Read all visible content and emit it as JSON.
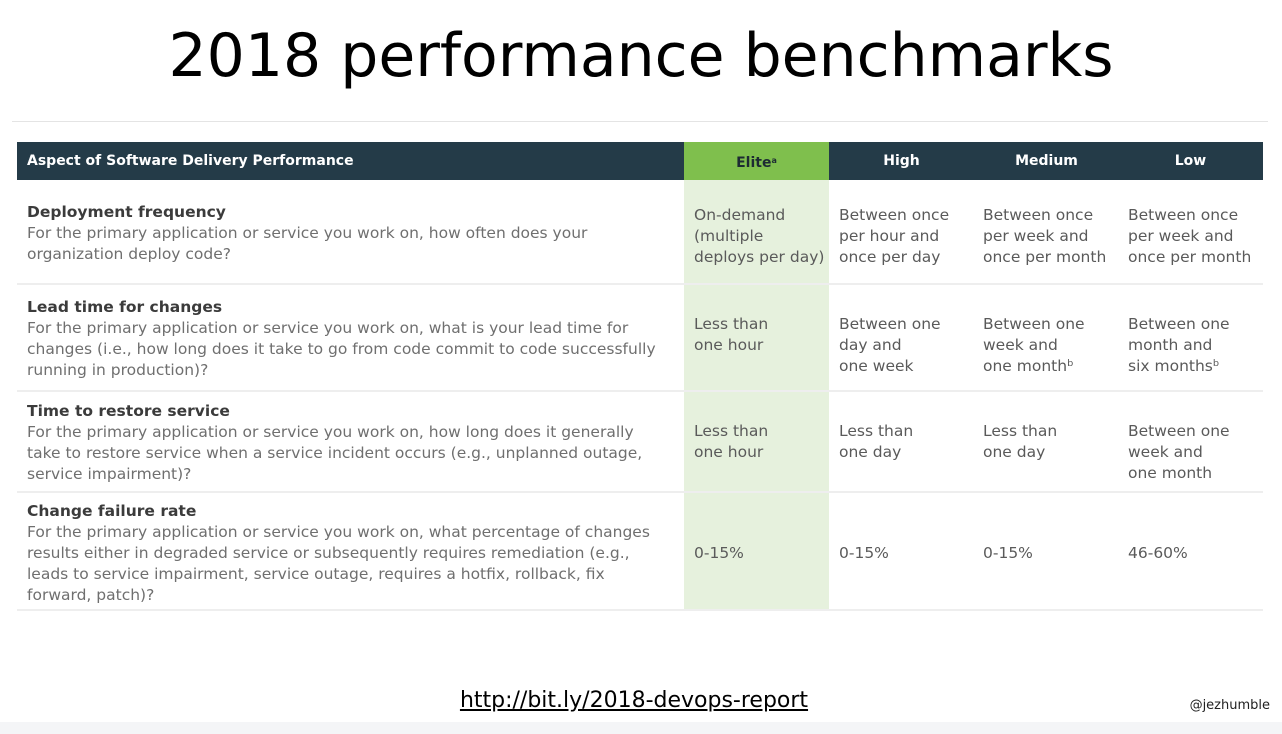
{
  "title": "2018 performance benchmarks",
  "table": {
    "headers": {
      "aspect": "Aspect of Software Delivery Performance",
      "elite": "Elite",
      "elite_note": "a",
      "high": "High",
      "medium": "Medium",
      "low": "Low"
    },
    "rows": [
      {
        "title": "Deployment frequency",
        "question": "For the primary application or service you work on, how often does your organization deploy code?",
        "elite": "On-demand\n(multiple\ndeploys per day)",
        "high": "Between once\nper hour and\nonce per day",
        "medium": "Between once\nper week and\nonce per month",
        "low": "Between once\nper week and\nonce per month"
      },
      {
        "title": "Lead time for changes",
        "question": "For the primary application or service you work on, what is your lead time for changes (i.e., how long does it take to go from code commit to code successfully running in production)?",
        "elite": "Less than\none hour",
        "high": "Between one\nday and\none week",
        "medium": "Between one\nweek and\none monthᵇ",
        "low": "Between one\nmonth and\nsix monthsᵇ"
      },
      {
        "title": "Time to restore service",
        "question": "For the primary application or service you work on, how long does it generally take to restore service when a service incident occurs (e.g., unplanned outage, service impairment)?",
        "elite": "Less than\none hour",
        "high": "Less than\none day",
        "medium": "Less than\none day",
        "low": "Between one\nweek and\none month"
      },
      {
        "title": "Change failure rate",
        "question": "For the primary application or service you work on, what percentage of changes results either in degraded service or subsequently requires remediation (e.g., leads to service impairment, service outage, requires a hotfix, rollback, fix forward, patch)?",
        "elite": "0-15%",
        "high": "0-15%",
        "medium": "0-15%",
        "low": "46-60%"
      }
    ]
  },
  "footer": {
    "link": "http://bit.ly/2018-devops-report",
    "handle": "@jezhumble"
  }
}
